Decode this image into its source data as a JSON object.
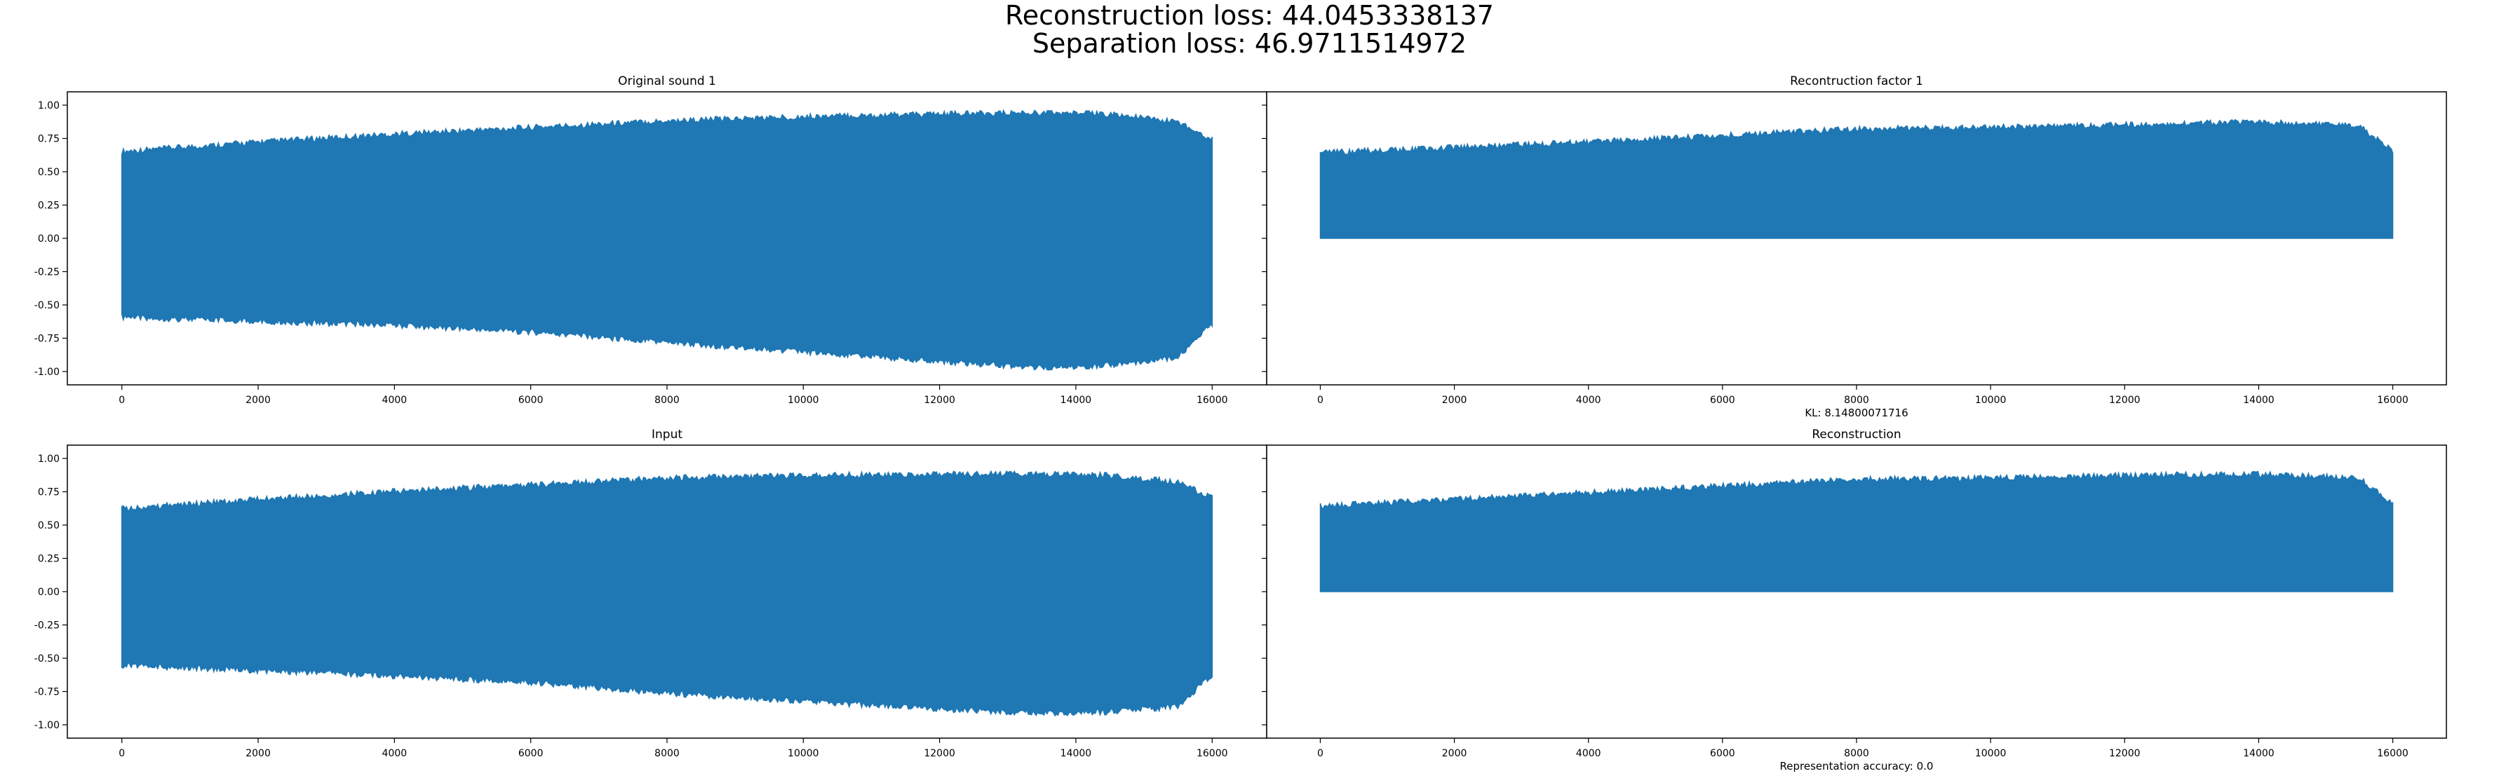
{
  "figure": {
    "suptitle_line1": "Reconstruction loss: 44.0453338137",
    "suptitle_line2": "Separation loss: 46.9711514972",
    "series_color": "#1f77b4"
  },
  "chart_data": [
    {
      "type": "line",
      "title": "Original sound 1",
      "xlabel": "",
      "ylabel": "",
      "xlim": [
        0,
        16000
      ],
      "ylim": [
        -1.0,
        1.0
      ],
      "xticks": [
        "0",
        "2000",
        "4000",
        "6000",
        "8000",
        "10000",
        "12000",
        "14000",
        "16000"
      ],
      "yticks": [
        "1.00",
        "0.75",
        "0.50",
        "0.25",
        "0.00",
        "-0.25",
        "-0.50",
        "-0.75",
        "-1.00"
      ],
      "envelope": {
        "x": [
          0,
          2000,
          4000,
          6000,
          8000,
          10000,
          12000,
          13500,
          14500,
          15500,
          16000
        ],
        "upper": [
          0.63,
          0.7,
          0.76,
          0.81,
          0.86,
          0.89,
          0.91,
          0.92,
          0.91,
          0.85,
          0.72
        ],
        "lower": [
          -0.57,
          -0.6,
          -0.63,
          -0.68,
          -0.76,
          -0.83,
          -0.9,
          -0.95,
          -0.93,
          -0.87,
          -0.62
        ]
      }
    },
    {
      "type": "line",
      "title": "Recontruction factor 1",
      "xlabel": "KL: 8.14800071716",
      "ylabel": "",
      "xlim": [
        0,
        16000
      ],
      "ylim": [
        -1.0,
        1.0
      ],
      "xticks": [
        "0",
        "2000",
        "4000",
        "6000",
        "8000",
        "10000",
        "12000",
        "14000",
        "16000"
      ],
      "envelope": {
        "x": [
          0,
          2000,
          4000,
          6000,
          8000,
          10000,
          12000,
          14000,
          15500,
          16000
        ],
        "upper": [
          0.62,
          0.66,
          0.7,
          0.75,
          0.8,
          0.81,
          0.83,
          0.85,
          0.82,
          0.63
        ],
        "lower": [
          0.0,
          0.0,
          0.0,
          0.0,
          0.0,
          0.0,
          0.0,
          0.0,
          0.0,
          0.0
        ]
      }
    },
    {
      "type": "line",
      "title": "Input",
      "xlabel": "",
      "ylabel": "",
      "xlim": [
        0,
        16000
      ],
      "ylim": [
        -1.0,
        1.0
      ],
      "xticks": [
        "0",
        "2000",
        "4000",
        "6000",
        "8000",
        "10000",
        "12000",
        "14000",
        "16000"
      ],
      "yticks": [
        "1.00",
        "0.75",
        "0.50",
        "0.25",
        "0.00",
        "-0.25",
        "-0.50",
        "-0.75",
        "-1.00"
      ],
      "envelope": {
        "x": [
          0,
          2000,
          4000,
          6000,
          8000,
          10000,
          12000,
          13500,
          14500,
          15500,
          16000
        ],
        "upper": [
          0.6,
          0.67,
          0.73,
          0.78,
          0.83,
          0.85,
          0.86,
          0.86,
          0.85,
          0.8,
          0.68
        ],
        "lower": [
          -0.53,
          -0.57,
          -0.61,
          -0.66,
          -0.74,
          -0.8,
          -0.86,
          -0.89,
          -0.88,
          -0.84,
          -0.6
        ]
      }
    },
    {
      "type": "line",
      "title": "Reconstruction",
      "xlabel": "Representation accuracy: 0.0",
      "ylabel": "",
      "xlim": [
        0,
        16000
      ],
      "ylim": [
        -1.0,
        1.0
      ],
      "xticks": [
        "0",
        "2000",
        "4000",
        "6000",
        "8000",
        "10000",
        "12000",
        "14000",
        "16000"
      ],
      "envelope": {
        "x": [
          0,
          2000,
          4000,
          6000,
          8000,
          10000,
          12000,
          14000,
          15500,
          16000
        ],
        "upper": [
          0.62,
          0.67,
          0.72,
          0.77,
          0.82,
          0.83,
          0.85,
          0.86,
          0.83,
          0.64
        ],
        "lower": [
          0.0,
          0.0,
          0.0,
          0.0,
          0.0,
          0.0,
          0.0,
          0.0,
          0.0,
          0.0
        ]
      }
    }
  ]
}
